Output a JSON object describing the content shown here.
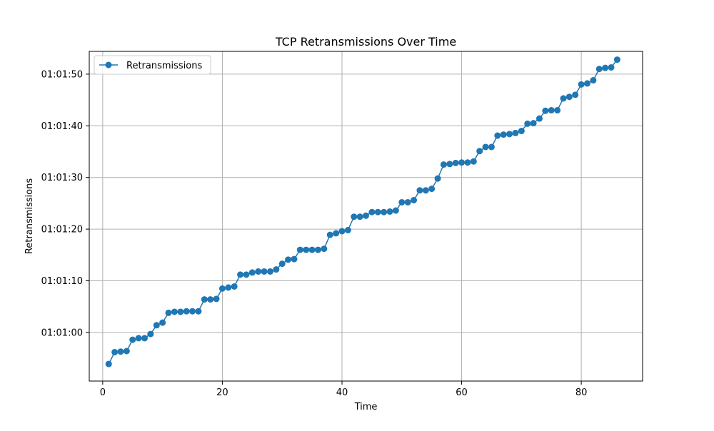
{
  "chart_data": {
    "type": "line",
    "title": "TCP Retransmissions Over Time",
    "xlabel": "Time",
    "ylabel": "Retransmissions",
    "xlim": [
      -2.25,
      90.25
    ],
    "ylim": [
      "01:00:50.6",
      "01:01:54.4"
    ],
    "xticks": [
      0,
      20,
      40,
      60,
      80
    ],
    "yticks": [
      "01:01:00",
      "01:01:10",
      "01:01:20",
      "01:01:30",
      "01:01:40",
      "01:01:50"
    ],
    "grid": true,
    "legend_position": "upper-left",
    "series": [
      {
        "name": "Retransmissions",
        "color": "#1f77b4",
        "marker": "circle",
        "x": [
          1,
          2,
          3,
          4,
          5,
          6,
          7,
          8,
          9,
          10,
          11,
          12,
          13,
          14,
          15,
          16,
          17,
          18,
          19,
          20,
          21,
          22,
          23,
          24,
          25,
          26,
          27,
          28,
          29,
          30,
          31,
          32,
          33,
          34,
          35,
          36,
          37,
          38,
          39,
          40,
          41,
          42,
          43,
          44,
          45,
          46,
          47,
          48,
          49,
          50,
          51,
          52,
          53,
          54,
          55,
          56,
          57,
          58,
          59,
          60,
          61,
          62,
          63,
          64,
          65,
          66,
          67,
          68,
          69,
          70,
          71,
          72,
          73,
          74,
          75,
          76,
          77,
          78,
          79,
          80,
          81,
          82,
          83,
          84,
          85,
          86
        ],
        "y": [
          "01:00:53.9",
          "01:00:56.2",
          "01:00:56.3",
          "01:00:56.4",
          "01:00:58.6",
          "01:00:58.9",
          "01:00:58.9",
          "01:00:59.7",
          "01:01:01.4",
          "01:01:01.9",
          "01:01:03.8",
          "01:01:04.0",
          "01:01:04.0",
          "01:01:04.1",
          "01:01:04.1",
          "01:01:04.1",
          "01:01:06.4",
          "01:01:06.4",
          "01:01:06.5",
          "01:01:08.5",
          "01:01:08.7",
          "01:01:08.9",
          "01:01:11.2",
          "01:01:11.2",
          "01:01:11.6",
          "01:01:11.8",
          "01:01:11.8",
          "01:01:11.8",
          "01:01:12.2",
          "01:01:13.3",
          "01:01:14.1",
          "01:01:14.2",
          "01:01:16.0",
          "01:01:16.0",
          "01:01:16.0",
          "01:01:16.0",
          "01:01:16.2",
          "01:01:18.9",
          "01:01:19.2",
          "01:01:19.6",
          "01:01:19.8",
          "01:01:22.4",
          "01:01:22.4",
          "01:01:22.6",
          "01:01:23.3",
          "01:01:23.3",
          "01:01:23.3",
          "01:01:23.4",
          "01:01:23.6",
          "01:01:25.2",
          "01:01:25.2",
          "01:01:25.6",
          "01:01:27.5",
          "01:01:27.5",
          "01:01:27.8",
          "01:01:29.8",
          "01:01:32.5",
          "01:01:32.6",
          "01:01:32.8",
          "01:01:32.9",
          "01:01:32.9",
          "01:01:33.1",
          "01:01:35.1",
          "01:01:35.9",
          "01:01:35.9",
          "01:01:38.1",
          "01:01:38.3",
          "01:01:38.4",
          "01:01:38.6",
          "01:01:39.0",
          "01:01:40.4",
          "01:01:40.5",
          "01:01:41.4",
          "01:01:42.9",
          "01:01:43.0",
          "01:01:43.0",
          "01:01:45.3",
          "01:01:45.6",
          "01:01:46.0",
          "01:01:48.0",
          "01:01:48.2",
          "01:01:48.8",
          "01:01:51.0",
          "01:01:51.2",
          "01:01:51.3",
          "01:01:52.8"
        ]
      }
    ]
  }
}
